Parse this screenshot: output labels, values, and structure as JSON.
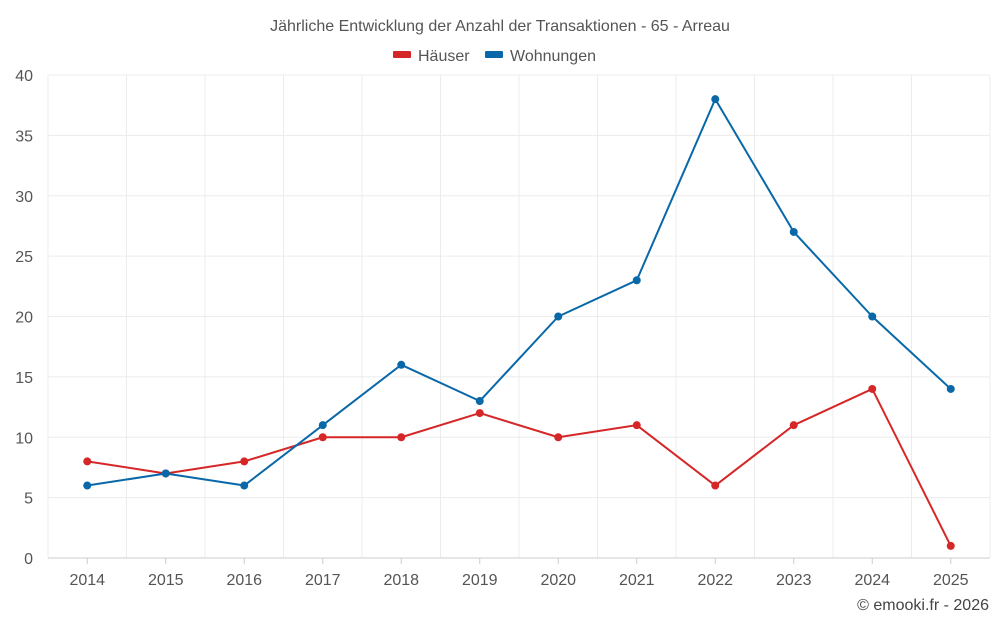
{
  "chart_data": {
    "type": "line",
    "title": "Jährliche Entwicklung der Anzahl der Transaktionen - 65 - Arreau",
    "categories": [
      "2014",
      "2015",
      "2016",
      "2017",
      "2018",
      "2019",
      "2020",
      "2021",
      "2022",
      "2023",
      "2024",
      "2025"
    ],
    "series": [
      {
        "name": "Häuser",
        "color": "#d62728",
        "values": [
          8,
          7,
          8,
          10,
          10,
          12,
          10,
          11,
          6,
          11,
          14,
          1
        ]
      },
      {
        "name": "Wohnungen",
        "color": "#0868a8",
        "values": [
          6,
          7,
          6,
          11,
          16,
          13,
          20,
          23,
          38,
          27,
          20,
          14
        ]
      }
    ],
    "ylim": [
      0,
      40
    ],
    "yticks": [
      0,
      5,
      10,
      15,
      20,
      25,
      30,
      35,
      40
    ],
    "xlabel": "",
    "ylabel": "",
    "grid": true,
    "legend_position": "top-center"
  },
  "credit": "© emooki.fr - 2026"
}
